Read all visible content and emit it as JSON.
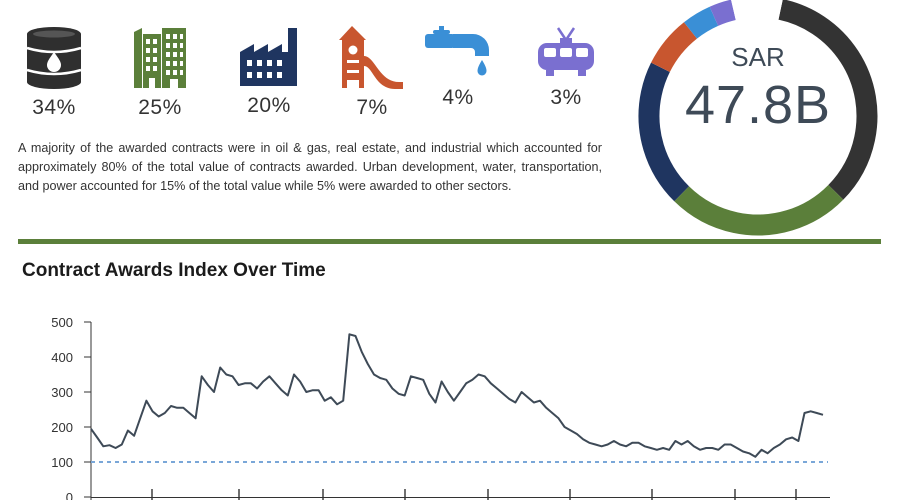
{
  "sectors": [
    {
      "icon": "oil-barrel-icon",
      "pct": "34%",
      "color": "#2f2f2f"
    },
    {
      "icon": "buildings-icon",
      "pct": "25%",
      "color": "#5b7f3a"
    },
    {
      "icon": "factory-icon",
      "pct": "20%",
      "color": "#1f3560"
    },
    {
      "icon": "playground-slide-icon",
      "pct": "7%",
      "color": "#c8562f"
    },
    {
      "icon": "water-tap-icon",
      "pct": "4%",
      "color": "#3a8fd6"
    },
    {
      "icon": "tram-icon",
      "pct": "3%",
      "color": "#7a6fd0"
    }
  ],
  "summary": "A majority of the awarded contracts were in oil & gas, real estate, and industrial which accounted for approximately 80% of the total value of contracts awarded. Urban development, water, transportation, and power accounted for 15% of the total value while 5% were awarded to other sectors.",
  "total": {
    "currency": "SAR",
    "value": "47.8B"
  },
  "donut_segments": [
    {
      "share": 34,
      "color": "#333333"
    },
    {
      "share": 25,
      "color": "#5b7f3a"
    },
    {
      "share": 20,
      "color": "#1f3560"
    },
    {
      "share": 7,
      "color": "#c8562f"
    },
    {
      "share": 4,
      "color": "#3a8fd6"
    },
    {
      "share": 3,
      "color": "#7a6fd0"
    },
    {
      "share": 7,
      "color": "#ffffff"
    }
  ],
  "chart_data": {
    "type": "line",
    "title": "Contract Awards Index Over Time",
    "xlabel": "",
    "ylabel": "",
    "ylim": [
      0,
      500
    ],
    "yticks": [
      0,
      100,
      200,
      300,
      400,
      500
    ],
    "ytick_labels": [
      "0",
      "100",
      "200",
      "300",
      "400",
      "500"
    ],
    "reference_line": {
      "value": 100,
      "color": "#7aa7d8",
      "style": "dashed"
    },
    "series": [
      {
        "color": "#3e4a57",
        "values": [
          195,
          170,
          145,
          148,
          140,
          150,
          190,
          175,
          225,
          275,
          245,
          230,
          240,
          260,
          255,
          255,
          240,
          225,
          345,
          320,
          300,
          370,
          350,
          345,
          320,
          325,
          325,
          310,
          330,
          345,
          325,
          305,
          290,
          350,
          330,
          300,
          305,
          305,
          275,
          285,
          265,
          275,
          465,
          460,
          415,
          380,
          350,
          340,
          335,
          310,
          295,
          290,
          345,
          340,
          335,
          295,
          270,
          330,
          300,
          275,
          300,
          325,
          335,
          350,
          345,
          325,
          310,
          295,
          280,
          270,
          300,
          285,
          270,
          275,
          255,
          240,
          225,
          200,
          190,
          180,
          165,
          155,
          150,
          145,
          150,
          160,
          150,
          145,
          155,
          155,
          145,
          140,
          135,
          140,
          135,
          160,
          150,
          160,
          145,
          135,
          140,
          140,
          135,
          150,
          150,
          140,
          130,
          125,
          115,
          135,
          125,
          140,
          150,
          165,
          170,
          160,
          240,
          245,
          240,
          235
        ]
      }
    ]
  }
}
